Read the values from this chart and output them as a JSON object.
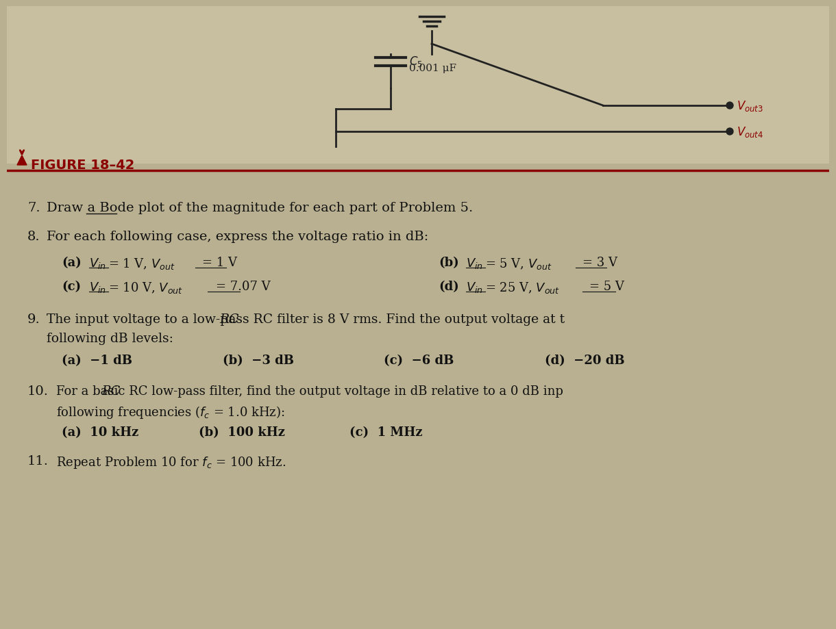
{
  "background_color": "#b8b090",
  "circuit_area_color": "#c8bfa0",
  "figure_label": "FIGURE 18-42",
  "figure_label_color": "#8B0000",
  "separator_line_color": "#8B0000",
  "title_arrow_color": "#333333",
  "circuit_line_color": "#222222",
  "text_color": "#111111",
  "problems": [
    {
      "number": "7.",
      "text": "Draw a Bode plot of the magnitude for each part of Problem 5.",
      "bold": false
    },
    {
      "number": "8.",
      "text": "For each following case, express the voltage ratio in dB:",
      "bold": false
    }
  ],
  "problem8_parts": [
    {
      "col": 0,
      "label": "(a)",
      "text": "$V_{in}$ = 1 V, $V_{out}$ = 1 V"
    },
    {
      "col": 1,
      "label": "(b)",
      "text": "$V_{in}$ = 5 V, $V_{out}$ = 3 V"
    },
    {
      "col": 0,
      "label": "(c)",
      "text": "$V_{in}$ = 10 V, $V_{out}$ = 7.07 V"
    },
    {
      "col": 1,
      "label": "(d)",
      "text": "$V_{in}$ = 25 V, $V_{out}$ = 5 V"
    }
  ],
  "problem9_text": "The input voltage to a low-pass RC filter is 8 V rms. Find the output voltage at the\nfollowing dB levels:",
  "problem9_parts": [
    "(a)  −1 dB",
    "(b)  −3 dB",
    "(c)  −6 dB",
    "(d)  −20 dB"
  ],
  "problem10_text": "For a basic RC low-pass filter, find the output voltage in dB relative to a 0 dB inp\nfollowing frequencies ($f_c$ = 1.0 kHz):",
  "problem10_parts": [
    "(a)  10 kHz",
    "(b)  100 kHz",
    "(c)  1 MHz"
  ],
  "problem11_text": "Repeat Problem 10 for $f_c$ = 100 kHz.",
  "capacitor_label": "$C_5$",
  "capacitor_value": "0.001 μF",
  "vout3_label": "$V_{out3}$",
  "vout4_label": "$V_{out4}$"
}
